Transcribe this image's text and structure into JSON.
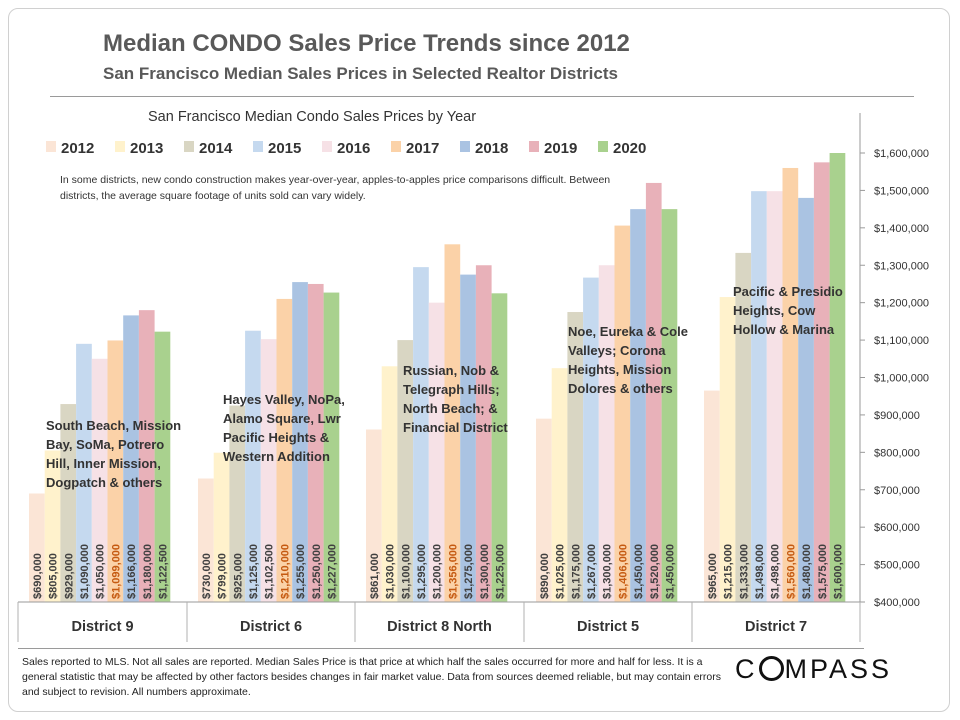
{
  "header": {
    "title": "Median CONDO Sales Price Trends since 2012",
    "subtitle": "San Francisco Median Sales Prices in Selected Realtor Districts"
  },
  "chart_data": {
    "type": "bar",
    "title": "San Francisco Median Condo Sales Prices by Year",
    "note": "In some districts, new condo construction makes year-over-year, apples-to-apples price comparisons difficult. Between districts, the average square footage of units sold can vary widely.",
    "categories": [
      "District 9",
      "District 6",
      "District 8 North",
      "District 5",
      "District 7"
    ],
    "category_notes": [
      [
        "South Beach, Mission",
        "Bay, SoMa, Potrero",
        "Hill, Inner Mission,",
        "Dogpatch & others"
      ],
      [
        "Hayes Valley, NoPa,",
        "Alamo Square, Lwr",
        "Pacific Heights &",
        "Western Addition"
      ],
      [
        "Russian, Nob &",
        "Telegraph Hills;",
        "North Beach; &",
        "Financial District"
      ],
      [
        "Noe, Eureka & Cole",
        "Valleys; Corona",
        "Heights, Mission",
        "Dolores & others"
      ],
      [
        "Pacific & Presidio",
        "Heights, Cow",
        "Hollow & Marina"
      ]
    ],
    "series": [
      {
        "name": "2012",
        "color": "#fbe5d6",
        "values": [
          690000,
          730000,
          861000,
          890000,
          965000
        ],
        "labels": [
          "$690,000",
          "$730,000",
          "$861,000",
          "$890,000",
          "$965,000"
        ]
      },
      {
        "name": "2013",
        "color": "#fff2cc",
        "values": [
          805000,
          799000,
          1030000,
          1025000,
          1215000
        ],
        "labels": [
          "$805,000",
          "$799,000",
          "$1,030,000",
          "$1,025,000",
          "$1,215,000"
        ]
      },
      {
        "name": "2014",
        "color": "#d9d6c3",
        "values": [
          929000,
          925000,
          1100000,
          1175000,
          1333000
        ],
        "labels": [
          "$929,000",
          "$925,000",
          "$1,100,000",
          "$1,175,000",
          "$1,333,000"
        ]
      },
      {
        "name": "2015",
        "color": "#c5d9ef",
        "values": [
          1090000,
          1125000,
          1295000,
          1267000,
          1498000
        ],
        "labels": [
          "$1,090,000",
          "$1,125,000",
          "$1,295,000",
          "$1,267,000",
          "$1,498,000"
        ]
      },
      {
        "name": "2016",
        "color": "#f6e1e6",
        "values": [
          1050000,
          1102500,
          1200000,
          1300000,
          1498000
        ],
        "labels": [
          "$1,050,000",
          "$1,102,500",
          "$1,200,000",
          "$1,300,000",
          "$1,498,000"
        ]
      },
      {
        "name": "2017",
        "color": "#fbd2a8",
        "values": [
          1099000,
          1210000,
          1356000,
          1406000,
          1560000
        ],
        "labels": [
          "$1,099,000",
          "$1,210,000",
          "$1,356,000",
          "$1,406,000",
          "$1,560,000"
        ]
      },
      {
        "name": "2018",
        "color": "#aac3e2",
        "values": [
          1166000,
          1255000,
          1275000,
          1450000,
          1480000
        ],
        "labels": [
          "$1,166,000",
          "$1,255,000",
          "$1,275,000",
          "$1,450,000",
          "$1,480,000"
        ]
      },
      {
        "name": "2019",
        "color": "#e8b1b9",
        "values": [
          1180000,
          1250000,
          1300000,
          1520000,
          1575000
        ],
        "labels": [
          "$1,180,000",
          "$1,250,000",
          "$1,300,000",
          "$1,520,000",
          "$1,575,000"
        ]
      },
      {
        "name": "2020",
        "color": "#a9d18e",
        "values": [
          1122500,
          1227000,
          1225000,
          1450000,
          1600000
        ],
        "labels": [
          "$1,122,500",
          "$1,227,000",
          "$1,225,000",
          "$1,450,000",
          "$1,600,000"
        ]
      }
    ],
    "ylim": [
      400000,
      1600000
    ],
    "yticks": [
      400000,
      500000,
      600000,
      700000,
      800000,
      900000,
      1000000,
      1100000,
      1200000,
      1300000,
      1400000,
      1500000,
      1600000
    ],
    "ytick_labels": [
      "$400,000",
      "$500,000",
      "$600,000",
      "$700,000",
      "$800,000",
      "$900,000",
      "$1,000,000",
      "$1,100,000",
      "$1,200,000",
      "$1,300,000",
      "$1,400,000",
      "$1,500,000",
      "$1,600,000"
    ],
    "axis_position": "right",
    "legend_position": "top",
    "grid": false,
    "label_color_default": "#404040",
    "label_color_2017": "#c55a11"
  },
  "footer": {
    "note": "Sales reported to MLS. Not all sales are reported. Median Sales Price is that price at which half the sales occurred for more and half for less. It is a general statistic that may be affected by other factors besides changes in fair market value. Data from sources deemed reliable, but may contain errors and subject to revision. All numbers approximate.",
    "logo_left": "C",
    "logo_right": "MPASS"
  }
}
